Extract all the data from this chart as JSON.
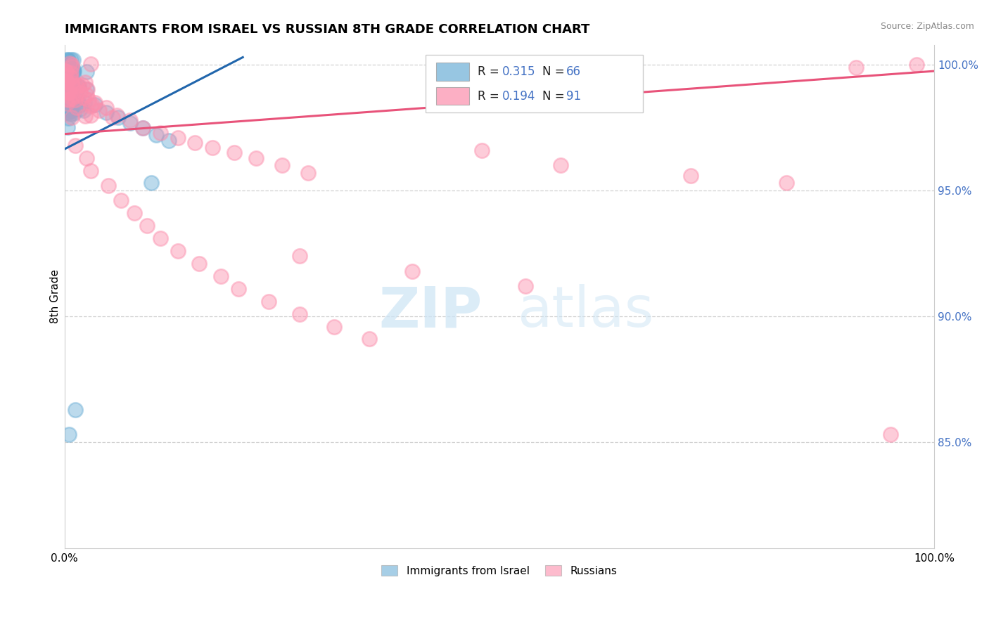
{
  "title": "IMMIGRANTS FROM ISRAEL VS RUSSIAN 8TH GRADE CORRELATION CHART",
  "source_text": "Source: ZipAtlas.com",
  "ylabel": "8th Grade",
  "xlim": [
    0.0,
    1.0
  ],
  "ylim": [
    0.808,
    1.008
  ],
  "y_ticks_right": [
    0.85,
    0.9,
    0.95,
    1.0
  ],
  "y_tick_labels_right": [
    "85.0%",
    "90.0%",
    "95.0%",
    "100.0%"
  ],
  "legend_r1": "0.315",
  "legend_n1": "66",
  "legend_r2": "0.194",
  "legend_n2": "91",
  "legend_label1": "Immigrants from Israel",
  "legend_label2": "Russians",
  "color_israel": "#6baed6",
  "color_russia": "#fc8eac",
  "color_israel_line": "#2166ac",
  "color_russia_line": "#e8537a",
  "color_right_axis": "#4472c4",
  "watermark_zip": "ZIP",
  "watermark_atlas": "atlas",
  "title_fontsize": 13,
  "blue_trend_x": [
    0.0,
    0.205
  ],
  "blue_trend_y": [
    0.9665,
    1.003
  ],
  "pink_trend_x": [
    0.0,
    1.0
  ],
  "pink_trend_y": [
    0.9725,
    0.9975
  ]
}
